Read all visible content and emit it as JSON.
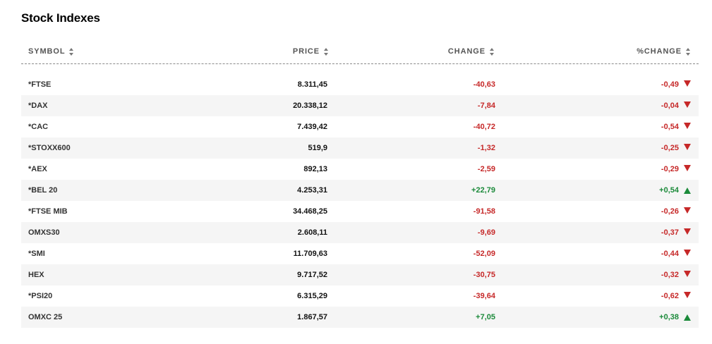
{
  "title": "Stock Indexes",
  "columns": {
    "symbol": "SYMBOL",
    "price": "PRICE",
    "change": "CHANGE",
    "pct_change": "%CHANGE"
  },
  "colors": {
    "negative": "#c62828",
    "positive": "#1b8a3a"
  },
  "rows": [
    {
      "symbol": "*FTSE",
      "price": "8.311,45",
      "change": "-40,63",
      "pct": "-0,49",
      "direction": "down"
    },
    {
      "symbol": "*DAX",
      "price": "20.338,12",
      "change": "-7,84",
      "pct": "-0,04",
      "direction": "down"
    },
    {
      "symbol": "*CAC",
      "price": "7.439,42",
      "change": "-40,72",
      "pct": "-0,54",
      "direction": "down"
    },
    {
      "symbol": "*STOXX600",
      "price": "519,9",
      "change": "-1,32",
      "pct": "-0,25",
      "direction": "down"
    },
    {
      "symbol": "*AEX",
      "price": "892,13",
      "change": "-2,59",
      "pct": "-0,29",
      "direction": "down"
    },
    {
      "symbol": "*BEL 20",
      "price": "4.253,31",
      "change": "+22,79",
      "pct": "+0,54",
      "direction": "up"
    },
    {
      "symbol": "*FTSE MIB",
      "price": "34.468,25",
      "change": "-91,58",
      "pct": "-0,26",
      "direction": "down"
    },
    {
      "symbol": "OMXS30",
      "price": "2.608,11",
      "change": "-9,69",
      "pct": "-0,37",
      "direction": "down"
    },
    {
      "symbol": "*SMI",
      "price": "11.709,63",
      "change": "-52,09",
      "pct": "-0,44",
      "direction": "down"
    },
    {
      "symbol": "HEX",
      "price": "9.717,52",
      "change": "-30,75",
      "pct": "-0,32",
      "direction": "down"
    },
    {
      "symbol": "*PSI20",
      "price": "6.315,29",
      "change": "-39,64",
      "pct": "-0,62",
      "direction": "down"
    },
    {
      "symbol": "OMXC 25",
      "price": "1.867,57",
      "change": "+7,05",
      "pct": "+0,38",
      "direction": "up"
    }
  ]
}
